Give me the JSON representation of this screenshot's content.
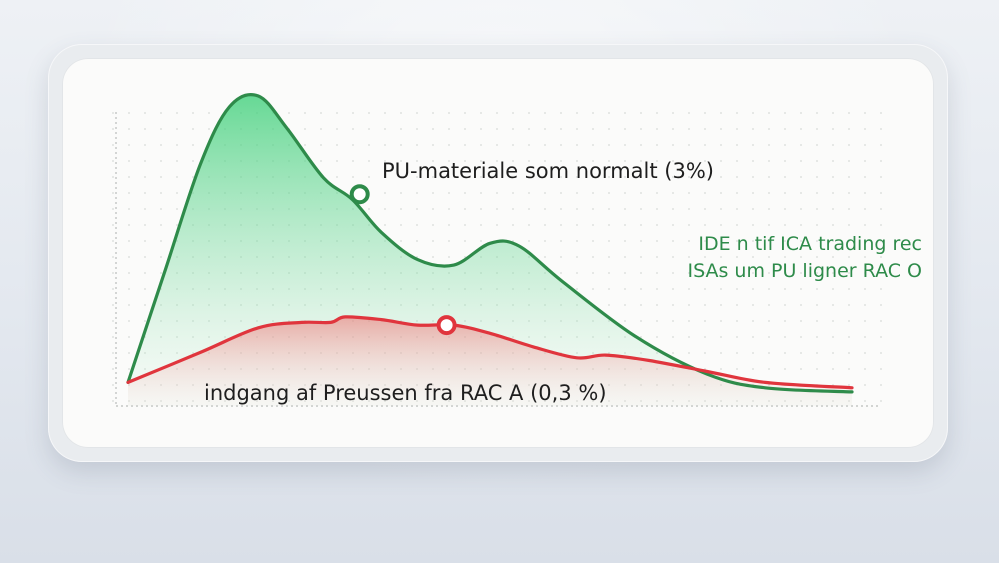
{
  "chart_data": {
    "type": "area",
    "title": "",
    "xlabel": "",
    "ylabel": "",
    "grid": true,
    "series": [
      {
        "name": "PU-materiale som normalt (3%)",
        "color": "#2e8b4a",
        "fill": "#3ccf78",
        "points": [
          [
            0.0,
            0.05
          ],
          [
            0.05,
            0.45
          ],
          [
            0.1,
            0.85
          ],
          [
            0.14,
            1.06
          ],
          [
            0.18,
            1.1
          ],
          [
            0.22,
            0.98
          ],
          [
            0.27,
            0.8
          ],
          [
            0.31,
            0.72
          ],
          [
            0.35,
            0.6
          ],
          [
            0.4,
            0.5
          ],
          [
            0.45,
            0.48
          ],
          [
            0.5,
            0.56
          ],
          [
            0.54,
            0.55
          ],
          [
            0.6,
            0.42
          ],
          [
            0.7,
            0.22
          ],
          [
            0.8,
            0.08
          ],
          [
            0.88,
            0.03
          ],
          [
            1.0,
            0.015
          ]
        ],
        "marker": [
          0.32,
          0.74
        ]
      },
      {
        "name": "indgang af Preussen fra RAC A (0,3 %)",
        "color": "#e0353d",
        "fill": "#f07070",
        "points": [
          [
            0.0,
            0.05
          ],
          [
            0.1,
            0.16
          ],
          [
            0.18,
            0.25
          ],
          [
            0.24,
            0.27
          ],
          [
            0.28,
            0.27
          ],
          [
            0.3,
            0.29
          ],
          [
            0.35,
            0.28
          ],
          [
            0.4,
            0.26
          ],
          [
            0.45,
            0.26
          ],
          [
            0.5,
            0.23
          ],
          [
            0.56,
            0.18
          ],
          [
            0.62,
            0.14
          ],
          [
            0.66,
            0.15
          ],
          [
            0.72,
            0.13
          ],
          [
            0.8,
            0.09
          ],
          [
            0.88,
            0.05
          ],
          [
            1.0,
            0.03
          ]
        ],
        "marker": [
          0.44,
          0.26
        ]
      }
    ],
    "annotations": [
      {
        "text": "PU-materiale som normalt (3%)",
        "color": "#1e1e1e"
      },
      {
        "text": "indgang af Preussen fra RAC A (0,3 %)",
        "color": "#1e1e1e"
      },
      {
        "lines": [
          "IDE n tif ICA trading rec",
          "ISAs um PU ligner RAC O"
        ],
        "color": "#2e8b4a"
      }
    ]
  }
}
